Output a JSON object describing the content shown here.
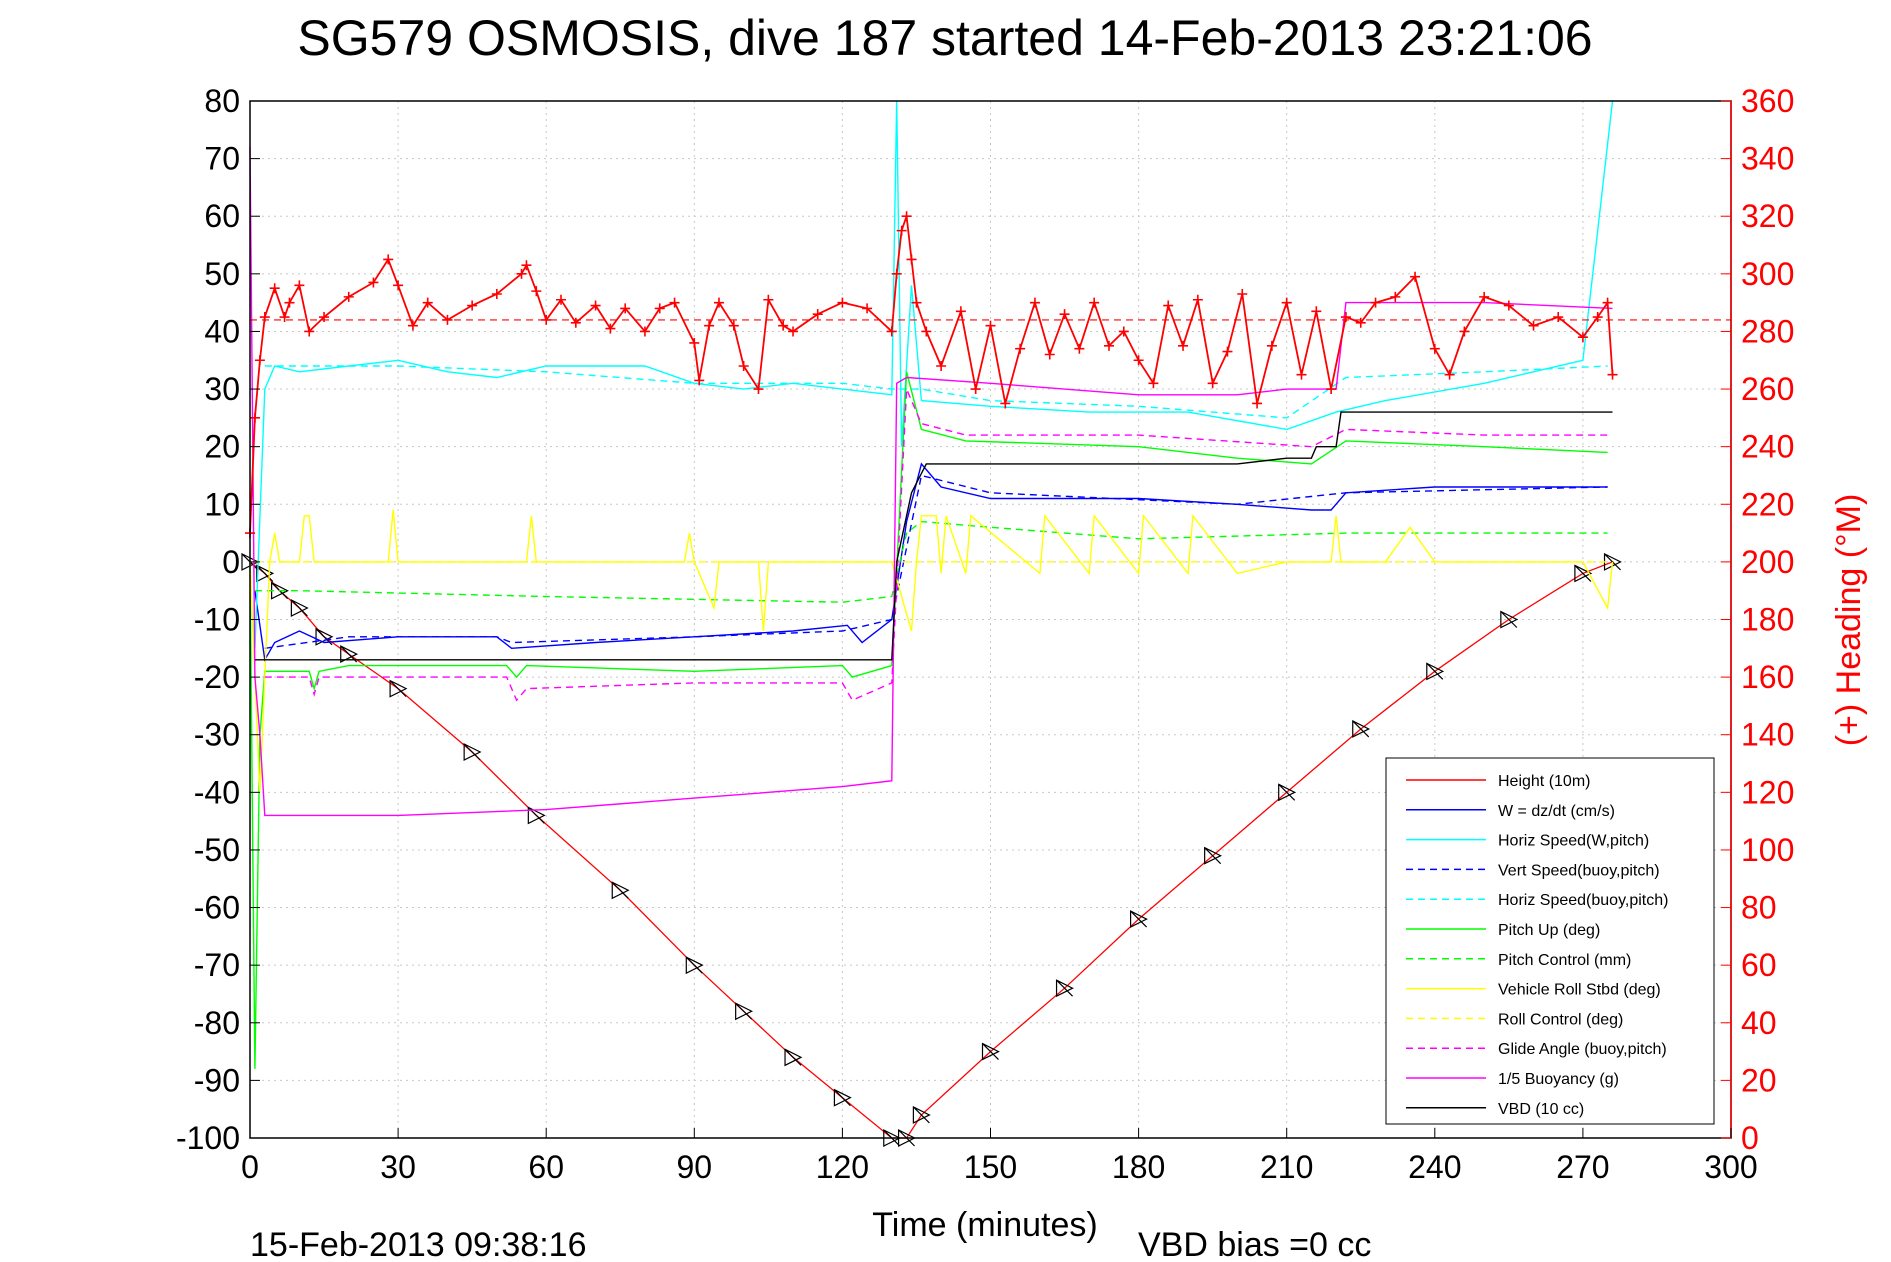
{
  "chart_data": {
    "type": "line",
    "title": "SG579 OSMOSIS, dive 187 started 14-Feb-2013 23:21:06",
    "xlabel": "Time (minutes)",
    "ylabel_right": "(+) Heading (°M)",
    "xlim": [
      0,
      300
    ],
    "ylim": [
      -100,
      80
    ],
    "ylim_right": [
      0,
      360
    ],
    "x_ticks": [
      "0",
      "30",
      "60",
      "90",
      "120",
      "150",
      "180",
      "210",
      "240",
      "270",
      "300"
    ],
    "y_ticks": [
      "80",
      "70",
      "60",
      "50",
      "40",
      "30",
      "20",
      "10",
      "0",
      "-10",
      "-20",
      "-30",
      "-40",
      "-50",
      "-60",
      "-70",
      "-80",
      "-90",
      "-100"
    ],
    "y_ticks_right": [
      "360",
      "340",
      "320",
      "300",
      "280",
      "260",
      "240",
      "220",
      "200",
      "180",
      "160",
      "140",
      "120",
      "100",
      "80",
      "60",
      "40",
      "20",
      "0"
    ],
    "grid": true,
    "legend_position": "bottom-right",
    "footer_left": "15-Feb-2013 09:38:16",
    "footer_right": "VBD bias =0 cc",
    "colors": {
      "height": "#ff0000",
      "w": "#0000ff",
      "horiz": "#00ffff",
      "vert_buoy": "#0000ff",
      "horiz_buoy": "#00ffff",
      "pitch": "#00ff00",
      "pitch_ctrl": "#00ff00",
      "roll": "#ffff00",
      "roll_ctrl": "#ffff00",
      "glide": "#ff00ff",
      "buoyancy": "#ff00ff",
      "vbd": "#000000"
    },
    "series": [
      {
        "name": "Height (10m)",
        "key": "height",
        "dash": false,
        "x": [
          0,
          3,
          6,
          10,
          15,
          20,
          30,
          45,
          58,
          75,
          90,
          100,
          110,
          120,
          130,
          133,
          136,
          150,
          165,
          180,
          195,
          210,
          225,
          240,
          255,
          270,
          276
        ],
        "values": [
          0,
          -2,
          -5,
          -8,
          -13,
          -16,
          -22,
          -33,
          -44,
          -57,
          -70,
          -78,
          -86,
          -93,
          -100,
          -100,
          -96,
          -85,
          -74,
          -62,
          -51,
          -40,
          -29,
          -19,
          -10,
          -2,
          0
        ]
      },
      {
        "name": "W = dz/dt (cm/s)",
        "key": "w",
        "dash": false,
        "x": [
          1,
          3,
          5,
          10,
          15,
          30,
          50,
          53,
          70,
          90,
          110,
          121,
          124,
          130,
          133,
          136,
          140,
          150,
          180,
          200,
          215,
          219,
          222,
          240,
          260,
          275
        ],
        "values": [
          -5,
          -17,
          -14,
          -12,
          -14,
          -13,
          -13,
          -15,
          -14,
          -13,
          -12,
          -11,
          -14,
          -10,
          7,
          17,
          13,
          11,
          11,
          10,
          9,
          9,
          12,
          13,
          13,
          13
        ]
      },
      {
        "name": "Horiz Speed(W,pitch)",
        "key": "horiz",
        "dash": false,
        "x": [
          1,
          3,
          5,
          10,
          20,
          30,
          40,
          50,
          60,
          70,
          80,
          90,
          100,
          110,
          120,
          130,
          131,
          132,
          134,
          136,
          150,
          170,
          190,
          210,
          220,
          230,
          250,
          270,
          276
        ],
        "values": [
          -15,
          30,
          34,
          33,
          34,
          35,
          33,
          32,
          34,
          34,
          34,
          31,
          30,
          31,
          30,
          29,
          80,
          20,
          48,
          28,
          27,
          26,
          26,
          23,
          26,
          28,
          31,
          35,
          80
        ]
      },
      {
        "name": "Vert Speed(buoy,pitch)",
        "key": "vert_buoy",
        "dash": true,
        "x": [
          3,
          20,
          50,
          53,
          90,
          120,
          130,
          136,
          150,
          200,
          222,
          275
        ],
        "values": [
          -15,
          -13,
          -13,
          -14,
          -13,
          -12,
          -10,
          15,
          12,
          10,
          12,
          13
        ]
      },
      {
        "name": "Horiz Speed(buoy,pitch)",
        "key": "horiz_buoy",
        "dash": true,
        "x": [
          3,
          30,
          60,
          90,
          120,
          130,
          136,
          150,
          180,
          210,
          222,
          250,
          275
        ],
        "values": [
          34,
          34,
          33,
          31,
          31,
          30,
          30,
          28,
          27,
          25,
          32,
          33,
          34
        ]
      },
      {
        "name": "Pitch Up (deg)",
        "key": "pitch",
        "dash": false,
        "x": [
          0,
          1,
          2,
          3,
          6,
          12,
          13,
          14,
          20,
          52,
          54,
          56,
          90,
          120,
          122,
          130,
          133,
          136,
          145,
          180,
          200,
          215,
          222,
          250,
          275
        ],
        "values": [
          0,
          -88,
          -30,
          -19,
          -19,
          -19,
          -22,
          -19,
          -18,
          -18,
          -20,
          -18,
          -19,
          -18,
          -20,
          -18,
          33,
          23,
          21,
          20,
          18,
          17,
          21,
          20,
          19
        ]
      },
      {
        "name": "Pitch Control (mm)",
        "key": "pitch_ctrl",
        "dash": true,
        "x": [
          1,
          10,
          60,
          120,
          130,
          133,
          136,
          150,
          180,
          222,
          275
        ],
        "values": [
          -5,
          -5,
          -6,
          -7,
          -6,
          5,
          7,
          6,
          4,
          5,
          5
        ]
      },
      {
        "name": "Vehicle Roll Stbd (deg)",
        "key": "roll",
        "dash": false,
        "x": [
          0,
          2,
          4,
          5,
          6,
          10,
          11,
          12,
          13,
          28,
          29,
          30,
          56,
          57,
          58,
          88,
          89,
          90,
          94,
          95,
          103,
          104,
          105,
          130,
          134,
          135,
          136,
          139,
          140,
          141,
          145,
          146,
          160,
          161,
          170,
          171,
          180,
          181,
          190,
          191,
          200,
          210,
          219,
          220,
          221,
          230,
          235,
          240,
          270,
          275,
          276
        ],
        "values": [
          0,
          -40,
          0,
          5,
          0,
          0,
          8,
          8,
          0,
          0,
          9,
          0,
          0,
          8,
          0,
          0,
          5,
          0,
          -8,
          0,
          0,
          -12,
          0,
          0,
          -12,
          0,
          8,
          8,
          -2,
          8,
          -2,
          8,
          -2,
          8,
          -2,
          8,
          -2,
          8,
          -2,
          8,
          -2,
          0,
          0,
          8,
          0,
          0,
          6,
          0,
          0,
          -8,
          0
        ]
      },
      {
        "name": "Roll Control (deg)",
        "key": "roll_ctrl",
        "dash": true,
        "x": [
          1,
          130,
          133,
          275
        ],
        "values": [
          0,
          0,
          0,
          0
        ]
      },
      {
        "name": "Glide Angle (buoy,pitch)",
        "key": "glide",
        "dash": true,
        "x": [
          3,
          12,
          13,
          14,
          30,
          52,
          54,
          56,
          90,
          120,
          122,
          130,
          133,
          136,
          145,
          180,
          215,
          222,
          250,
          275
        ],
        "values": [
          -20,
          -20,
          -23,
          -20,
          -20,
          -20,
          -24,
          -22,
          -21,
          -21,
          -24,
          -21,
          30,
          24,
          22,
          22,
          20,
          23,
          22,
          22
        ]
      },
      {
        "name": "1/5 Buoyancy (g)",
        "key": "buoyancy",
        "dash": false,
        "x": [
          0,
          1,
          2,
          3,
          30,
          60,
          90,
          120,
          130,
          131,
          133,
          150,
          180,
          200,
          210,
          220,
          222,
          250,
          276
        ],
        "values": [
          72,
          -20,
          -30,
          -44,
          -44,
          -43,
          -41,
          -39,
          -38,
          31,
          32,
          31,
          29,
          29,
          30,
          30,
          45,
          45,
          44
        ]
      },
      {
        "name": "VBD (10 cc)",
        "key": "vbd",
        "dash": false,
        "x": [
          1,
          3,
          130,
          131,
          134,
          137,
          160,
          200,
          210,
          215,
          216,
          220,
          221,
          276
        ],
        "values": [
          -17,
          -17,
          -17,
          0,
          12,
          17,
          17,
          17,
          18,
          18,
          20,
          20,
          26,
          26
        ]
      }
    ],
    "heading": {
      "name": "Heading",
      "marker": "+",
      "mean": 284,
      "x": [
        0,
        1,
        2,
        3,
        5,
        7,
        8,
        10,
        12,
        15,
        20,
        25,
        28,
        30,
        33,
        36,
        40,
        45,
        50,
        55,
        56,
        58,
        60,
        63,
        66,
        70,
        73,
        76,
        80,
        83,
        86,
        90,
        91,
        93,
        95,
        98,
        100,
        103,
        105,
        108,
        110,
        115,
        120,
        125,
        130,
        131,
        132,
        133,
        134,
        135,
        137,
        140,
        144,
        147,
        150,
        153,
        156,
        159,
        162,
        165,
        168,
        171,
        174,
        177,
        180,
        183,
        186,
        189,
        192,
        195,
        198,
        201,
        204,
        207,
        210,
        213,
        216,
        219,
        222,
        225,
        228,
        232,
        236,
        240,
        243,
        246,
        250,
        255,
        260,
        265,
        270,
        273,
        275,
        276
      ],
      "values": [
        210,
        250,
        270,
        285,
        295,
        285,
        290,
        296,
        280,
        285,
        292,
        297,
        305,
        296,
        282,
        290,
        284,
        289,
        293,
        300,
        303,
        294,
        284,
        291,
        283,
        289,
        281,
        288,
        280,
        288,
        290,
        276,
        263,
        282,
        290,
        282,
        268,
        260,
        291,
        282,
        280,
        286,
        290,
        288,
        280,
        300,
        315,
        320,
        305,
        290,
        280,
        268,
        287,
        260,
        282,
        255,
        274,
        290,
        272,
        286,
        274,
        290,
        275,
        280,
        270,
        262,
        289,
        275,
        291,
        262,
        273,
        293,
        255,
        275,
        290,
        265,
        287,
        260,
        285,
        283,
        290,
        292,
        299,
        274,
        265,
        280,
        292,
        289,
        282,
        285,
        278,
        285,
        290,
        265
      ]
    }
  }
}
